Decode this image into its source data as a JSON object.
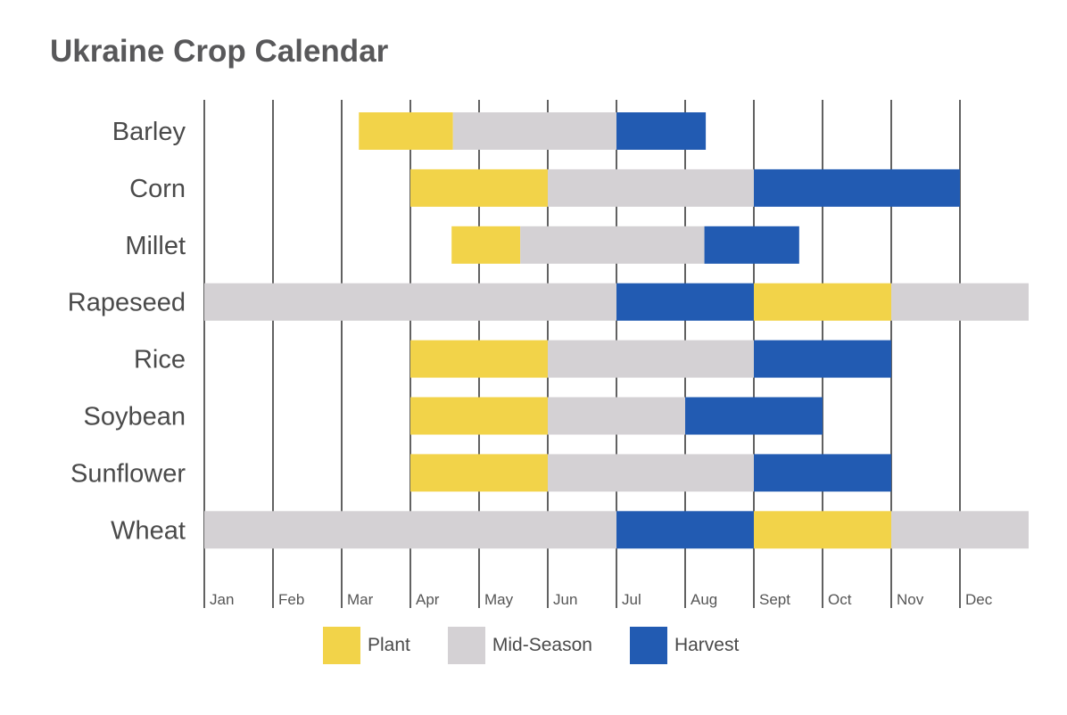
{
  "chart_data": {
    "type": "bar",
    "subtype": "gantt",
    "title": "Ukraine Crop Calendar",
    "months": [
      "Jan",
      "Feb",
      "Mar",
      "Apr",
      "May",
      "Jun",
      "Jul",
      "Aug",
      "Sept",
      "Oct",
      "Nov",
      "Dec"
    ],
    "x_unit": "month (0 = start of Jan, 12 = end of Dec)",
    "xlim": [
      0,
      12
    ],
    "grid": true,
    "legend_position": "bottom",
    "phases": [
      {
        "name": "Plant",
        "color": "#f2d349"
      },
      {
        "name": "Mid-Season",
        "color": "#d4d1d4"
      },
      {
        "name": "Harvest",
        "color": "#225bb2"
      }
    ],
    "crops": [
      {
        "name": "Barley",
        "segments": [
          {
            "phase": "Plant",
            "start": 2.25,
            "end": 3.62
          },
          {
            "phase": "Mid-Season",
            "start": 3.62,
            "end": 6.0
          },
          {
            "phase": "Harvest",
            "start": 6.0,
            "end": 7.3
          }
        ]
      },
      {
        "name": "Corn",
        "segments": [
          {
            "phase": "Plant",
            "start": 3.0,
            "end": 5.0
          },
          {
            "phase": "Mid-Season",
            "start": 5.0,
            "end": 8.0
          },
          {
            "phase": "Harvest",
            "start": 8.0,
            "end": 11.0
          }
        ]
      },
      {
        "name": "Millet",
        "segments": [
          {
            "phase": "Plant",
            "start": 3.6,
            "end": 4.6
          },
          {
            "phase": "Mid-Season",
            "start": 4.6,
            "end": 7.28
          },
          {
            "phase": "Harvest",
            "start": 7.28,
            "end": 8.66
          }
        ]
      },
      {
        "name": "Rapeseed",
        "segments": [
          {
            "phase": "Mid-Season",
            "start": 0.0,
            "end": 6.0
          },
          {
            "phase": "Harvest",
            "start": 6.0,
            "end": 8.0
          },
          {
            "phase": "Plant",
            "start": 8.0,
            "end": 10.0
          },
          {
            "phase": "Mid-Season",
            "start": 10.0,
            "end": 12.0
          }
        ]
      },
      {
        "name": "Rice",
        "segments": [
          {
            "phase": "Plant",
            "start": 3.0,
            "end": 5.0
          },
          {
            "phase": "Mid-Season",
            "start": 5.0,
            "end": 8.0
          },
          {
            "phase": "Harvest",
            "start": 8.0,
            "end": 10.0
          }
        ]
      },
      {
        "name": "Soybean",
        "segments": [
          {
            "phase": "Plant",
            "start": 3.0,
            "end": 5.0
          },
          {
            "phase": "Mid-Season",
            "start": 5.0,
            "end": 7.0
          },
          {
            "phase": "Harvest",
            "start": 7.0,
            "end": 9.0
          }
        ]
      },
      {
        "name": "Sunflower",
        "segments": [
          {
            "phase": "Plant",
            "start": 3.0,
            "end": 5.0
          },
          {
            "phase": "Mid-Season",
            "start": 5.0,
            "end": 8.0
          },
          {
            "phase": "Harvest",
            "start": 8.0,
            "end": 10.0
          }
        ]
      },
      {
        "name": "Wheat",
        "segments": [
          {
            "phase": "Mid-Season",
            "start": 0.0,
            "end": 6.0
          },
          {
            "phase": "Harvest",
            "start": 6.0,
            "end": 8.0
          },
          {
            "phase": "Plant",
            "start": 8.0,
            "end": 10.0
          },
          {
            "phase": "Mid-Season",
            "start": 10.0,
            "end": 12.0
          }
        ]
      }
    ]
  }
}
